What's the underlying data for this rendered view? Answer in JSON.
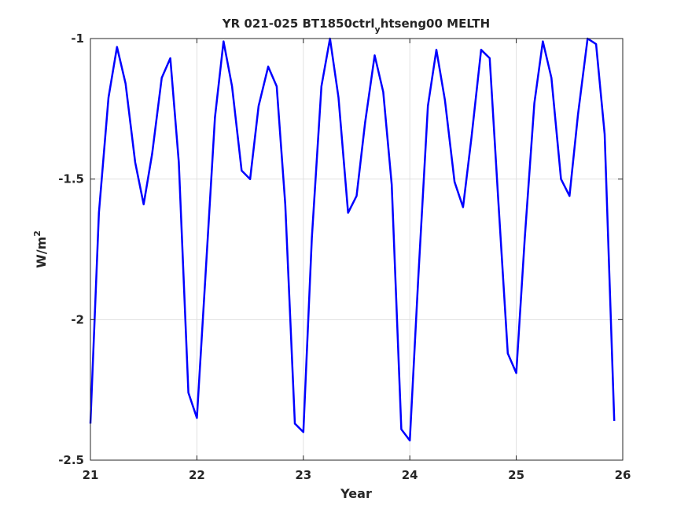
{
  "chart_data": {
    "type": "line",
    "title_parts": [
      "YR 021-025 BT1850ctrl",
      "y",
      "htseng00 MELTH"
    ],
    "xlabel": "Year",
    "ylabel_parts": [
      "W/m",
      "2"
    ],
    "xlim": [
      21,
      26
    ],
    "ylim": [
      -2.5,
      -1
    ],
    "x_ticks": [
      21,
      22,
      23,
      24,
      25,
      26
    ],
    "x_tick_labels": [
      "21",
      "22",
      "23",
      "24",
      "25",
      "26"
    ],
    "y_ticks": [
      -2.5,
      -2,
      -1.5,
      -1
    ],
    "y_tick_labels": [
      "-2.5",
      "-2",
      "-1.5",
      "-1"
    ],
    "grid": true,
    "series": [
      {
        "color": "#0000ff",
        "x": [
          21.0,
          21.08,
          21.17,
          21.25,
          21.33,
          21.42,
          21.5,
          21.58,
          21.67,
          21.75,
          21.83,
          21.92,
          22.0,
          22.08,
          22.17,
          22.25,
          22.33,
          22.42,
          22.5,
          22.58,
          22.67,
          22.75,
          22.83,
          22.92,
          23.0,
          23.08,
          23.17,
          23.25,
          23.33,
          23.42,
          23.5,
          23.58,
          23.67,
          23.75,
          23.83,
          23.92,
          24.0,
          24.08,
          24.17,
          24.25,
          24.33,
          24.42,
          24.5,
          24.58,
          24.67,
          24.75,
          24.83,
          24.92,
          25.0,
          25.08,
          25.17,
          25.25,
          25.33,
          25.42,
          25.5,
          25.58,
          25.67,
          25.75,
          25.83,
          25.92
        ],
        "values": [
          -2.37,
          -1.62,
          -1.21,
          -1.03,
          -1.16,
          -1.44,
          -1.59,
          -1.41,
          -1.14,
          -1.07,
          -1.44,
          -2.26,
          -2.35,
          -1.85,
          -1.28,
          -1.01,
          -1.17,
          -1.47,
          -1.5,
          -1.24,
          -1.1,
          -1.17,
          -1.59,
          -2.37,
          -2.4,
          -1.71,
          -1.17,
          -1.0,
          -1.21,
          -1.62,
          -1.56,
          -1.3,
          -1.06,
          -1.19,
          -1.52,
          -2.39,
          -2.43,
          -1.85,
          -1.24,
          -1.04,
          -1.22,
          -1.51,
          -1.6,
          -1.35,
          -1.04,
          -1.07,
          -1.57,
          -2.12,
          -2.19,
          -1.71,
          -1.23,
          -1.01,
          -1.14,
          -1.5,
          -1.56,
          -1.27,
          -1.0,
          -1.02,
          -1.34,
          -2.36
        ]
      }
    ]
  }
}
